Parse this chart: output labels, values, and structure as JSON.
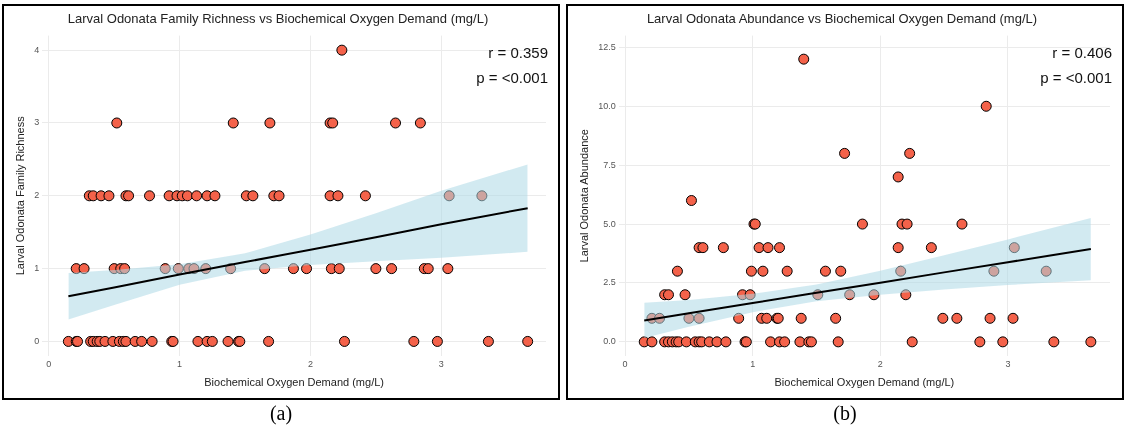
{
  "chart_data": [
    {
      "type": "scatter",
      "title": "Larval Odonata Family Richness vs Biochemical Oxygen Demand (mg/L)",
      "xlabel": "Biochemical Oxygen Demand (mg/L)",
      "ylabel": "Larval Odonata Family Richness",
      "xlim": [
        -0.05,
        3.8
      ],
      "xticks": [
        0,
        1,
        2,
        3
      ],
      "ylim": [
        -0.2,
        4.2
      ],
      "yticks": [
        0,
        1,
        2,
        3,
        4
      ],
      "grid": true,
      "annotations": [
        "r = 0.359",
        "p = <0.001",
        "(a)"
      ],
      "series": [
        {
          "marker": "circle",
          "color": "#f4624a",
          "x": [
            0.15,
            0.21,
            0.22,
            0.32,
            0.34,
            0.37,
            0.39,
            0.43,
            0.49,
            0.54,
            0.57,
            0.59,
            0.66,
            0.71,
            0.79,
            0.94,
            0.95,
            1.14,
            1.21,
            1.25,
            1.37,
            1.45,
            1.46,
            1.68,
            2.26,
            2.79,
            2.97,
            3.36,
            3.66,
            0.21,
            0.27,
            0.5,
            0.55,
            0.58,
            0.89,
            0.99,
            1.07,
            1.11,
            1.2,
            1.39,
            1.65,
            1.87,
            1.97,
            2.16,
            2.22,
            2.5,
            2.62,
            2.87,
            2.9,
            3.05,
            0.31,
            0.34,
            0.4,
            0.46,
            0.59,
            0.61,
            0.77,
            0.92,
            0.98,
            1.02,
            1.06,
            1.13,
            1.21,
            1.27,
            1.51,
            1.56,
            1.72,
            1.76,
            2.15,
            2.21,
            2.42,
            3.06,
            3.31,
            0.52,
            1.41,
            1.69,
            2.15,
            2.17,
            2.65,
            2.84,
            2.24
          ],
          "values": [
            0,
            0,
            0,
            0,
            0,
            0,
            0,
            0,
            0,
            0,
            0,
            0,
            0,
            0,
            0,
            0,
            0,
            0,
            0,
            0,
            0,
            0,
            0,
            0,
            0,
            0,
            0,
            0,
            0,
            1,
            1,
            1,
            1,
            1,
            1,
            1,
            1,
            1,
            1,
            1,
            1,
            1,
            1,
            1,
            1,
            1,
            1,
            1,
            1,
            1,
            2,
            2,
            2,
            2,
            2,
            2,
            2,
            2,
            2,
            2,
            2,
            2,
            2,
            2,
            2,
            2,
            2,
            2,
            2,
            2,
            2,
            2,
            2,
            3,
            3,
            3,
            3,
            3,
            3,
            3,
            4
          ]
        },
        {
          "type": "line",
          "color": "#000000",
          "x": [
            0.15,
            0.5,
            1,
            1.5,
            2,
            2.5,
            3,
            3.66
          ],
          "values": [
            0.62,
            0.74,
            0.92,
            1.09,
            1.26,
            1.43,
            1.61,
            1.83
          ],
          "lower": [
            0.3,
            0.5,
            0.78,
            0.97,
            1.05,
            1.1,
            1.15,
            1.23
          ],
          "upper": [
            0.94,
            0.98,
            1.06,
            1.21,
            1.47,
            1.76,
            2.07,
            2.43
          ]
        }
      ]
    },
    {
      "type": "scatter",
      "title": "Larval Odonata Abundance vs Biochemical Oxygen Demand (mg/L)",
      "xlabel": "Biochemical Oxygen Demand (mg/L)",
      "ylabel": "Larval Odonata Abundance",
      "xlim": [
        -0.05,
        3.8
      ],
      "xticks": [
        0,
        1,
        2,
        3
      ],
      "ylim": [
        -0.6,
        13
      ],
      "yticks": [
        {
          "value": 0,
          "label": "0.0"
        },
        {
          "value": 2.5,
          "label": "2.5"
        },
        {
          "value": 5,
          "label": "5.0"
        },
        {
          "value": 7.5,
          "label": "7.5"
        },
        {
          "value": 10,
          "label": "10.0"
        },
        {
          "value": 12.5,
          "label": "12.5"
        }
      ],
      "grid": true,
      "annotations": [
        "r = 0.406",
        "p = <0.001",
        "(b)"
      ],
      "series": [
        {
          "marker": "circle",
          "color": "#f4624a",
          "x": [
            0.15,
            0.21,
            0.31,
            0.34,
            0.37,
            0.4,
            0.42,
            0.48,
            0.55,
            0.58,
            0.6,
            0.66,
            0.72,
            0.79,
            0.94,
            0.95,
            1.14,
            1.21,
            1.25,
            1.37,
            1.44,
            1.46,
            1.67,
            2.25,
            2.78,
            2.96,
            3.36,
            3.65,
            0.21,
            0.27,
            0.5,
            0.58,
            0.89,
            1.07,
            1.11,
            1.19,
            1.2,
            1.38,
            1.65,
            2.49,
            2.6,
            2.86,
            3.04,
            0.31,
            0.34,
            0.47,
            0.92,
            0.98,
            1.51,
            1.76,
            1.95,
            2.2,
            0.41,
            0.99,
            1.08,
            1.27,
            1.57,
            1.69,
            2.16,
            2.89,
            3.3,
            0.58,
            0.61,
            0.77,
            1.05,
            1.12,
            1.21,
            2.14,
            2.4,
            3.05,
            1.01,
            1.02,
            1.86,
            2.17,
            2.21,
            2.64,
            0.52,
            2.14,
            1.72,
            2.23,
            2.83,
            1.4
          ],
          "values": [
            0,
            0,
            0,
            0,
            0,
            0,
            0,
            0,
            0,
            0,
            0,
            0,
            0,
            0,
            0,
            0,
            0,
            0,
            0,
            0,
            0,
            0,
            0,
            0,
            0,
            0,
            0,
            0,
            1,
            1,
            1,
            1,
            1,
            1,
            1,
            1,
            1,
            1,
            1,
            1,
            1,
            1,
            1,
            2,
            2,
            2,
            2,
            2,
            2,
            2,
            2,
            2,
            3,
            3,
            3,
            3,
            3,
            3,
            3,
            3,
            3,
            4,
            4,
            4,
            4,
            4,
            4,
            4,
            4,
            4,
            5,
            5,
            5,
            5,
            5,
            5,
            6,
            7,
            8,
            8,
            10,
            12
          ]
        },
        {
          "type": "line",
          "color": "#000000",
          "x": [
            0.15,
            0.5,
            1,
            1.5,
            2,
            2.5,
            3,
            3.65
          ],
          "values": [
            0.91,
            1.21,
            1.65,
            2.08,
            2.51,
            2.95,
            3.38,
            3.94
          ],
          "lower": [
            0.16,
            0.64,
            1.26,
            1.72,
            2.0,
            2.22,
            2.41,
            2.62
          ],
          "upper": [
            1.66,
            1.78,
            2.04,
            2.44,
            3.02,
            3.68,
            4.35,
            5.26
          ]
        }
      ]
    }
  ]
}
